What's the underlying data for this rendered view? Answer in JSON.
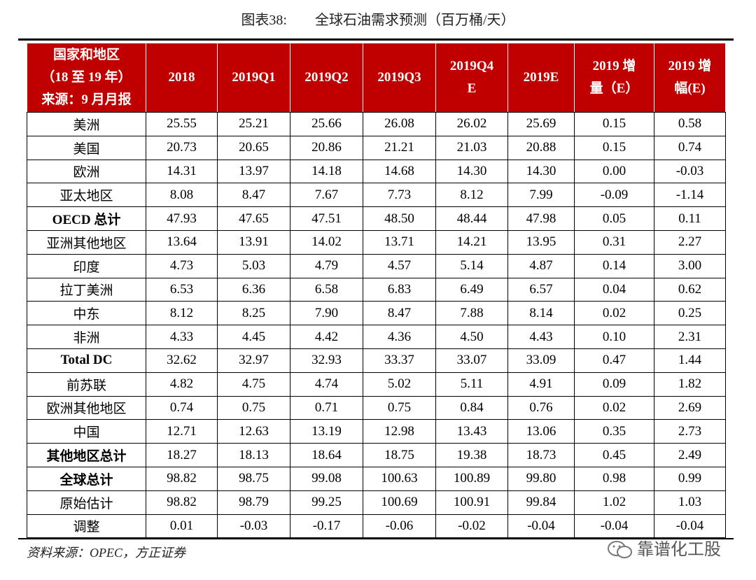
{
  "title": "图表38:　　全球石油需求预测（百万桶/天）",
  "table": {
    "header": [
      "国家和地区\n（18 至 19 年）\n来源：9 月月报",
      "2018",
      "2019Q1",
      "2019Q2",
      "2019Q3",
      "2019Q4\nE",
      "2019E",
      "2019 增\n量（E）",
      "2019 增\n幅(E)"
    ],
    "rows": [
      {
        "label": "美洲",
        "values": [
          "25.55",
          "25.21",
          "25.66",
          "26.08",
          "26.02",
          "25.69",
          "0.15",
          "0.58"
        ]
      },
      {
        "label": "美国",
        "values": [
          "20.73",
          "20.65",
          "20.86",
          "21.21",
          "21.03",
          "20.88",
          "0.15",
          "0.74"
        ]
      },
      {
        "label": "欧洲",
        "values": [
          "14.31",
          "13.97",
          "14.18",
          "14.68",
          "14.30",
          "14.30",
          "0.00",
          "-0.03"
        ]
      },
      {
        "label": "亚太地区",
        "values": [
          "8.08",
          "8.47",
          "7.67",
          "7.73",
          "8.12",
          "7.99",
          "-0.09",
          "-1.14"
        ]
      },
      {
        "label": "OECD 总计",
        "bold": true,
        "values": [
          "47.93",
          "47.65",
          "47.51",
          "48.50",
          "48.44",
          "47.98",
          "0.05",
          "0.11"
        ]
      },
      {
        "label": "亚洲其他地区",
        "values": [
          "13.64",
          "13.91",
          "14.02",
          "13.71",
          "14.21",
          "13.95",
          "0.31",
          "2.27"
        ]
      },
      {
        "label": "印度",
        "values": [
          "4.73",
          "5.03",
          "4.79",
          "4.57",
          "5.14",
          "4.87",
          "0.14",
          "3.00"
        ]
      },
      {
        "label": "拉丁美洲",
        "values": [
          "6.53",
          "6.36",
          "6.58",
          "6.83",
          "6.49",
          "6.57",
          "0.04",
          "0.62"
        ]
      },
      {
        "label": "中东",
        "values": [
          "8.12",
          "8.25",
          "7.90",
          "8.47",
          "7.88",
          "8.14",
          "0.02",
          "0.25"
        ]
      },
      {
        "label": "非洲",
        "values": [
          "4.33",
          "4.45",
          "4.42",
          "4.36",
          "4.50",
          "4.43",
          "0.10",
          "2.31"
        ]
      },
      {
        "label": "Total DC",
        "bold": true,
        "values": [
          "32.62",
          "32.97",
          "32.93",
          "33.37",
          "33.07",
          "33.09",
          "0.47",
          "1.44"
        ]
      },
      {
        "label": "前苏联",
        "values": [
          "4.82",
          "4.75",
          "4.74",
          "5.02",
          "5.11",
          "4.91",
          "0.09",
          "1.82"
        ]
      },
      {
        "label": "欧洲其他地区",
        "values": [
          "0.74",
          "0.75",
          "0.71",
          "0.75",
          "0.84",
          "0.76",
          "0.02",
          "2.69"
        ]
      },
      {
        "label": "中国",
        "values": [
          "12.71",
          "12.63",
          "13.19",
          "12.98",
          "13.43",
          "13.06",
          "0.35",
          "2.73"
        ]
      },
      {
        "label": "其他地区总计",
        "bold": true,
        "values": [
          "18.27",
          "18.13",
          "18.64",
          "18.75",
          "19.38",
          "18.73",
          "0.45",
          "2.49"
        ]
      },
      {
        "label": "全球总计",
        "bold": true,
        "values": [
          "98.82",
          "98.75",
          "99.08",
          "100.63",
          "100.89",
          "99.80",
          "0.98",
          "0.99"
        ]
      },
      {
        "label": "原始估计",
        "values": [
          "98.82",
          "98.79",
          "99.25",
          "100.69",
          "100.91",
          "99.84",
          "1.02",
          "1.03"
        ]
      },
      {
        "label": "调整",
        "values": [
          "0.01",
          "-0.03",
          "-0.17",
          "-0.06",
          "-0.02",
          "-0.04",
          "-0.04",
          "-0.04"
        ]
      }
    ]
  },
  "source": "资料来源：OPEC，方正证券",
  "watermark": "靠谱化工股"
}
